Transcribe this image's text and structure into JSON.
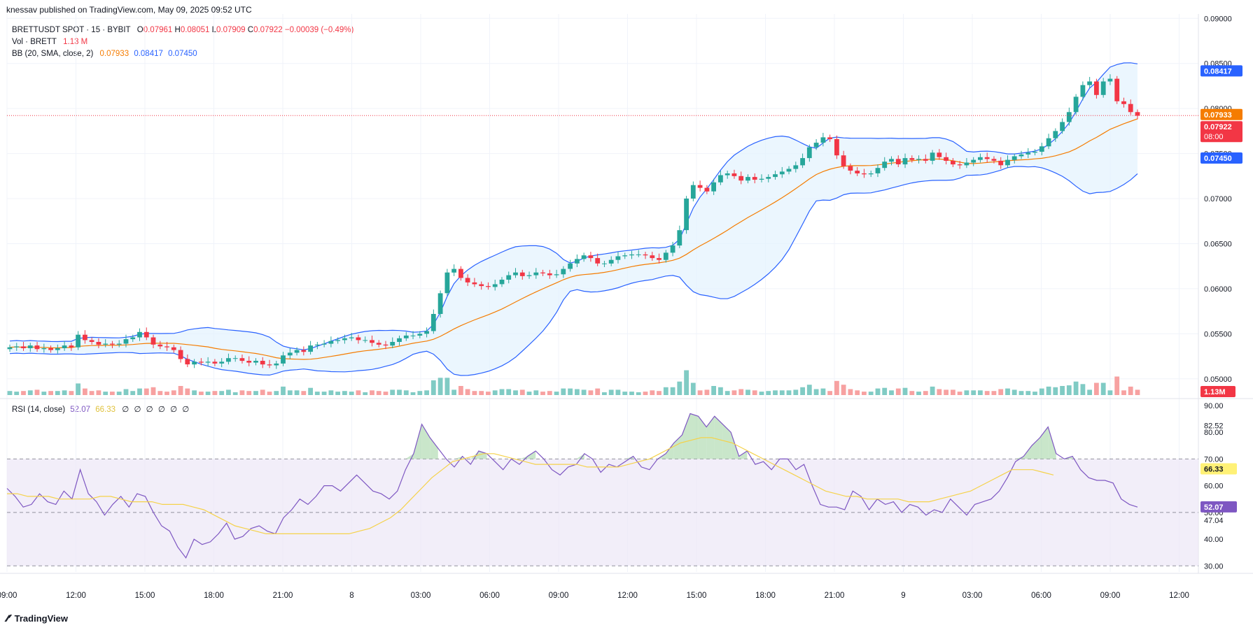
{
  "header": {
    "published": "knessav published on TradingView.com, May 09, 2025 09:52 UTC"
  },
  "legend": {
    "symbol": "BRETTUSDT SPOT · 15 · BYBIT",
    "o_key": "O",
    "o": "0.07961",
    "h_key": "H",
    "h": "0.08051",
    "l_key": "L",
    "l": "0.07909",
    "c_key": "C",
    "c": "0.07922",
    "change": "−0.00039 (−0.49%)",
    "vol_label": "Vol · BRETT",
    "vol": "1.13 M",
    "bb_label": "BB (20, SMA, close, 2)",
    "bb_basis": "0.07933",
    "bb_upper": "0.08417",
    "bb_lower": "0.07450"
  },
  "rsi_legend": {
    "label": "RSI (14, close)",
    "rsi": "52.07",
    "ma": "66.33",
    "extras": "∅ ∅ ∅ ∅ ∅ ∅"
  },
  "footer": {
    "brand": "TradingView"
  },
  "colors": {
    "up": "#26a69a",
    "down": "#f23645",
    "basis": "#f57c00",
    "band": "#2962ff",
    "band_fill": "#e3f2fd",
    "rsi_line": "#7e57c2",
    "rsi_ma": "#f5d24a",
    "rsi_band_fill": "#ede7f6",
    "vol_up": "#80cbc4",
    "vol_down": "#f7a1a1"
  },
  "chart_data": [
    {
      "type": "candlestick",
      "title": "BRETTUSDT SPOT · 15 · BYBIT",
      "x_ticks": [
        "09:00",
        "12:00",
        "15:00",
        "18:00",
        "21:00",
        "8",
        "03:00",
        "06:00",
        "09:00",
        "12:00",
        "15:00",
        "18:00",
        "21:00",
        "9",
        "03:00",
        "06:00",
        "09:00",
        "12:00"
      ],
      "y_ticks": [
        "0.09000",
        "0.08500",
        "0.08000",
        "0.07500",
        "0.07000",
        "0.06500",
        "0.06000",
        "0.05500",
        "0.05000"
      ],
      "ylim": [
        0.0482,
        0.0901
      ],
      "price_labels": {
        "upper": "0.08417",
        "basis": "0.07933",
        "last": "0.07922",
        "countdown": "08:00",
        "lower": "0.07450",
        "volume": "1.13M"
      },
      "last_price": 0.07922,
      "close_path": [
        0.0535,
        0.0536,
        0.0534,
        0.0537,
        0.0533,
        0.0534,
        0.0532,
        0.0534,
        0.0537,
        0.0535,
        0.0549,
        0.0543,
        0.0541,
        0.0538,
        0.0539,
        0.0538,
        0.0539,
        0.0544,
        0.0546,
        0.0552,
        0.0546,
        0.0538,
        0.0536,
        0.0535,
        0.0532,
        0.0522,
        0.0516,
        0.0519,
        0.0518,
        0.0519,
        0.0517,
        0.0519,
        0.0523,
        0.0523,
        0.052,
        0.0518,
        0.052,
        0.0516,
        0.0515,
        0.0517,
        0.0526,
        0.0529,
        0.0532,
        0.053,
        0.0537,
        0.0538,
        0.0539,
        0.0542,
        0.0543,
        0.0545,
        0.0546,
        0.0543,
        0.0543,
        0.054,
        0.0538,
        0.0537,
        0.0541,
        0.0545,
        0.0548,
        0.0548,
        0.055,
        0.0553,
        0.0572,
        0.0595,
        0.0618,
        0.0622,
        0.0612,
        0.0607,
        0.0605,
        0.0603,
        0.0602,
        0.0605,
        0.061,
        0.0615,
        0.0618,
        0.0614,
        0.0615,
        0.0618,
        0.0617,
        0.0615,
        0.0616,
        0.0622,
        0.0628,
        0.0633,
        0.0637,
        0.0634,
        0.0628,
        0.0628,
        0.0632,
        0.0636,
        0.0637,
        0.0638,
        0.0638,
        0.0637,
        0.0634,
        0.0632,
        0.064,
        0.0648,
        0.0665,
        0.07,
        0.0715,
        0.0712,
        0.0708,
        0.0718,
        0.0726,
        0.0728,
        0.0725,
        0.072,
        0.0724,
        0.0721,
        0.0722,
        0.0724,
        0.0727,
        0.073,
        0.0733,
        0.0737,
        0.0745,
        0.0757,
        0.0762,
        0.0768,
        0.0766,
        0.0748,
        0.0736,
        0.0731,
        0.0728,
        0.0727,
        0.0728,
        0.0734,
        0.0741,
        0.0744,
        0.0738,
        0.0745,
        0.0743,
        0.0744,
        0.0742,
        0.0751,
        0.0746,
        0.0742,
        0.0738,
        0.0737,
        0.074,
        0.0743,
        0.0746,
        0.0744,
        0.0742,
        0.0737,
        0.0743,
        0.0747,
        0.0749,
        0.0751,
        0.0752,
        0.0758,
        0.0767,
        0.0775,
        0.0785,
        0.0796,
        0.0813,
        0.0826,
        0.083,
        0.0815,
        0.083,
        0.0833,
        0.0808,
        0.0805,
        0.0796,
        0.0792
      ]
    },
    {
      "type": "line",
      "title": "RSI (14, close)",
      "y_ticks": [
        "90.00",
        "80.00",
        "70.00",
        "60.00",
        "50.00",
        "40.00",
        "30.00"
      ],
      "ylim": [
        28.5,
        90
      ],
      "bands": {
        "upper": 70,
        "middle": 50,
        "lower": 30
      },
      "price_labels": {
        "max": "82.52",
        "ma": "66.33",
        "rsi": "52.07",
        "min": "47.04"
      },
      "series": [
        {
          "name": "RSI",
          "values": [
            59,
            56,
            52,
            53,
            57,
            54,
            53,
            58,
            55,
            66,
            57,
            54,
            49,
            53,
            56,
            52,
            57,
            56,
            50,
            45,
            43,
            37,
            33,
            40,
            38,
            39,
            42,
            46,
            40,
            41,
            44,
            45,
            43,
            42,
            48,
            51,
            55,
            53,
            56,
            60,
            60,
            58,
            61,
            64,
            61,
            58,
            57,
            55,
            58,
            66,
            72,
            83,
            78,
            74,
            70,
            67,
            71,
            68,
            73,
            72,
            69,
            66,
            70,
            68,
            71,
            73,
            70,
            66,
            64,
            67,
            68,
            72,
            70,
            65,
            68,
            67,
            69,
            71,
            67,
            66,
            70,
            72,
            76,
            79,
            87,
            86,
            82,
            86,
            83,
            80,
            71,
            73,
            68,
            69,
            66,
            70,
            70,
            66,
            68,
            60,
            53,
            52,
            52,
            51,
            58,
            56,
            51,
            55,
            53,
            54,
            50,
            53,
            52,
            49,
            51,
            50,
            55,
            52,
            49,
            53,
            54,
            55,
            58,
            63,
            69,
            71,
            75,
            78,
            82,
            72,
            70,
            71,
            66,
            63,
            62,
            62,
            61,
            55,
            53,
            52
          ]
        },
        {
          "name": "MA",
          "values": [
            57,
            57,
            56,
            56,
            56,
            55,
            55,
            55,
            55,
            56,
            56,
            55,
            54,
            54,
            54,
            53,
            53,
            53,
            52,
            51,
            49,
            47,
            45,
            44,
            43,
            42,
            42,
            42,
            42,
            42,
            42,
            42,
            42,
            42,
            43,
            44,
            46,
            48,
            51,
            55,
            59,
            63,
            66,
            69,
            70,
            71,
            72,
            72,
            71,
            70,
            69,
            68,
            68,
            68,
            68,
            68,
            67,
            67,
            67,
            67,
            68,
            69,
            70,
            72,
            74,
            76,
            77,
            78,
            78,
            77,
            76,
            74,
            72,
            70,
            68,
            66,
            64,
            62,
            60,
            58,
            57,
            56,
            56,
            55,
            55,
            55,
            55,
            54,
            54,
            54,
            55,
            56,
            57,
            58,
            60,
            62,
            64,
            66,
            66,
            66,
            65,
            64
          ]
        }
      ]
    }
  ]
}
